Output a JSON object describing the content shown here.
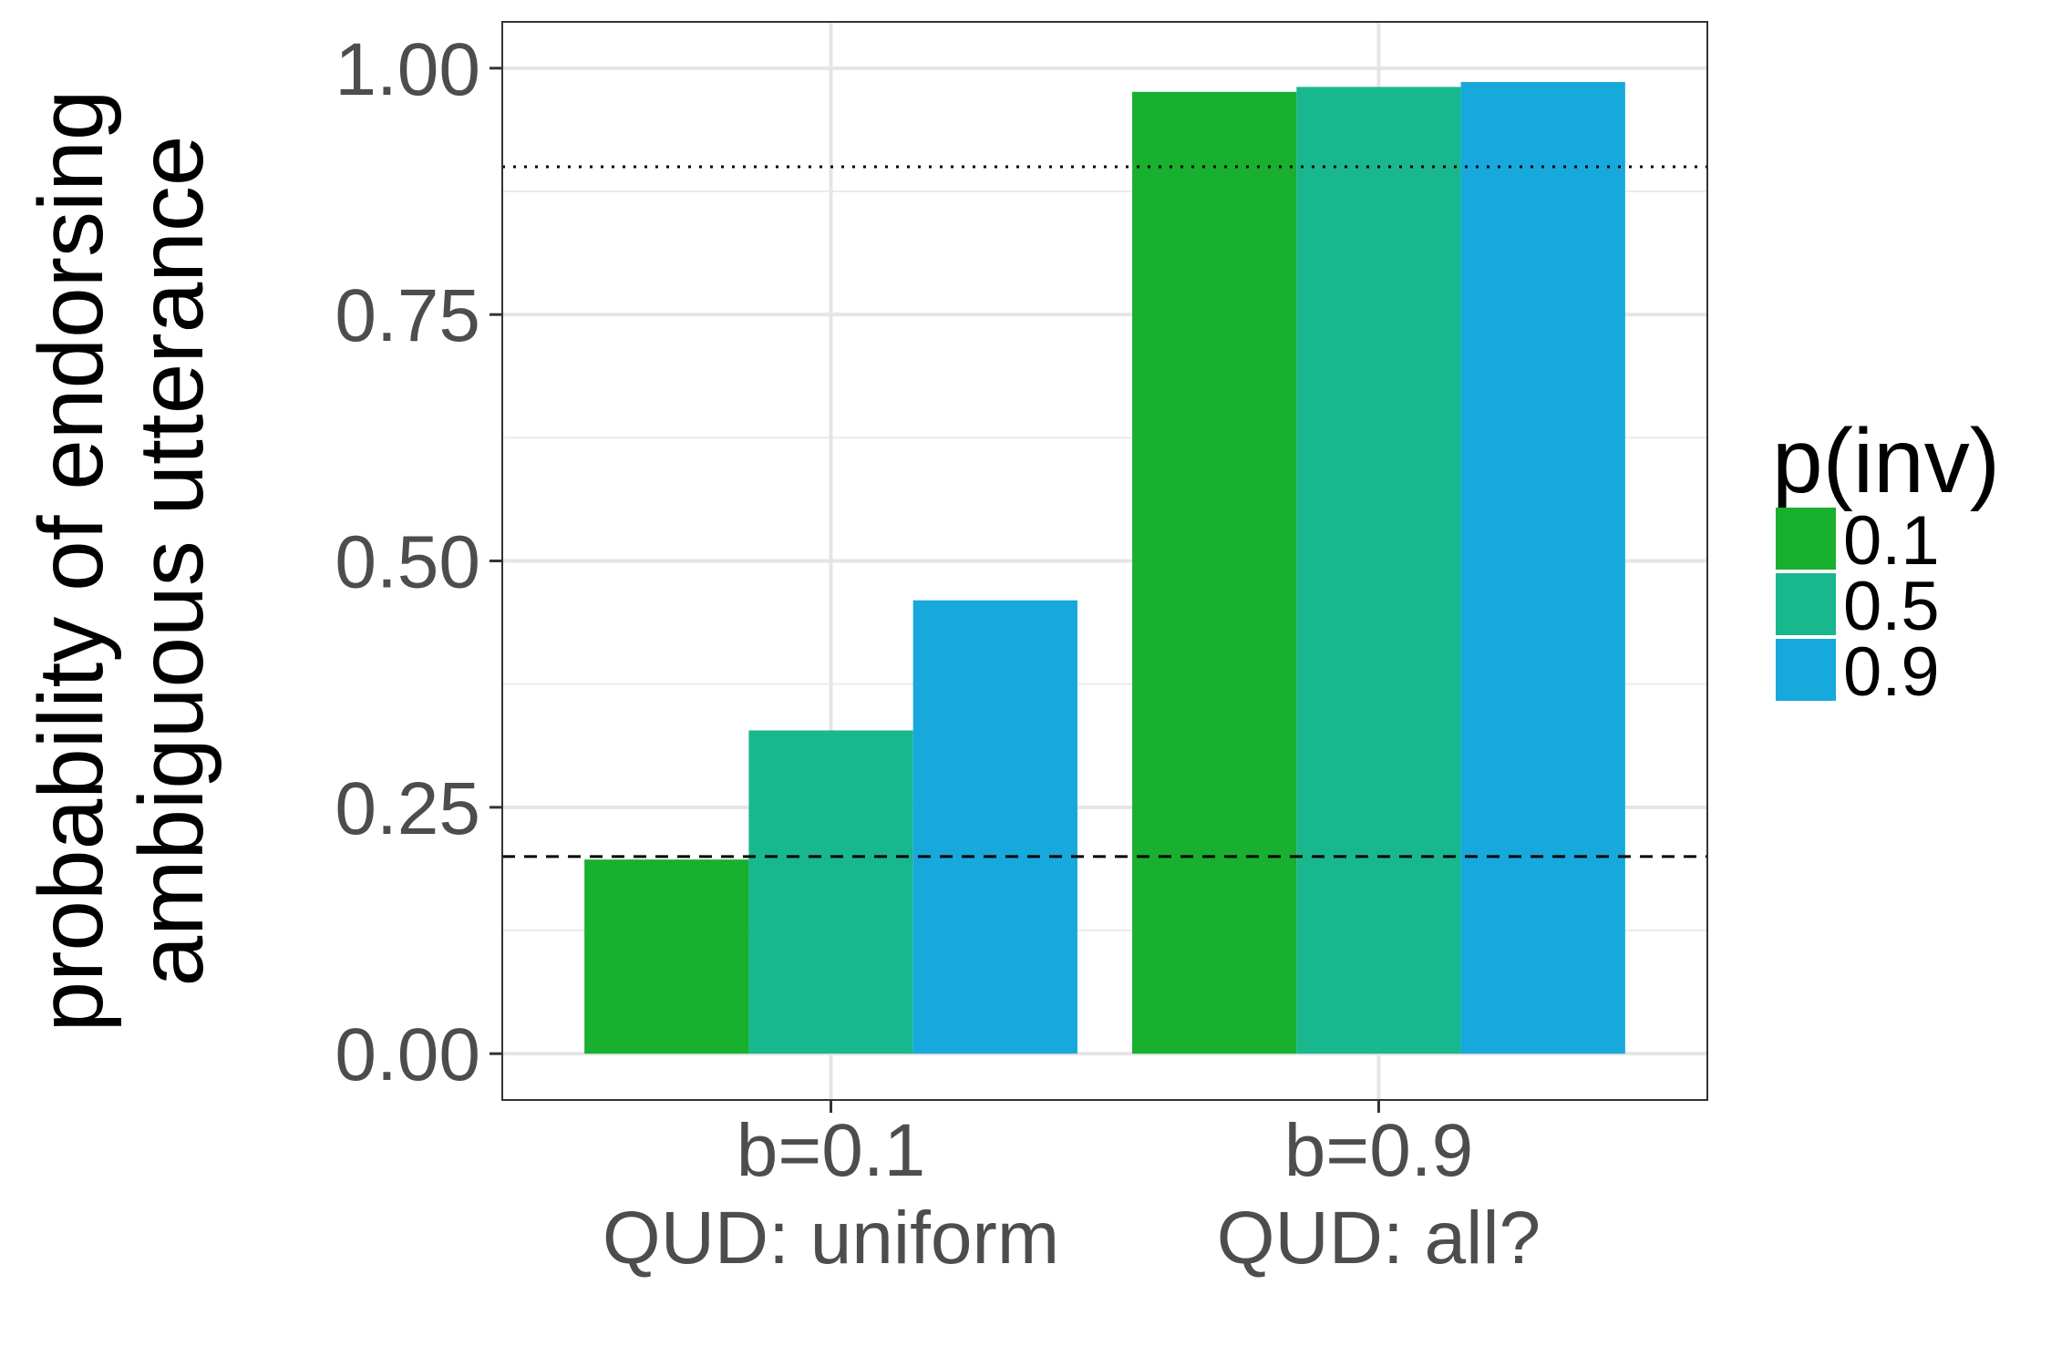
{
  "chart_data": {
    "type": "bar",
    "title": "",
    "xlabel": "",
    "ylabel_lines": [
      "probability of endorsing",
      "ambiguous utterance"
    ],
    "categories": [
      [
        "b=0.1",
        "QUD: uniform"
      ],
      [
        "b=0.9",
        "QUD: all?"
      ]
    ],
    "legend_title": "p(inv)",
    "legend_position": "right",
    "series": [
      {
        "name": "0.1",
        "color": "#18b02e",
        "values": [
          0.197,
          0.976
        ]
      },
      {
        "name": "0.5",
        "color": "#18b78e",
        "values": [
          0.328,
          0.981
        ]
      },
      {
        "name": "0.9",
        "color": "#17a8dc",
        "values": [
          0.46,
          0.986
        ]
      }
    ],
    "ylim": [
      -0.047,
      1.047
    ],
    "yticks": [
      0.0,
      0.25,
      0.5,
      0.75,
      1.0
    ],
    "ytick_labels": [
      "0.00",
      "0.25",
      "0.50",
      "0.75",
      "1.00"
    ],
    "reference_lines": [
      {
        "value": 0.9,
        "style": "dotted"
      },
      {
        "value": 0.2,
        "style": "dashed"
      }
    ],
    "grid": true
  }
}
